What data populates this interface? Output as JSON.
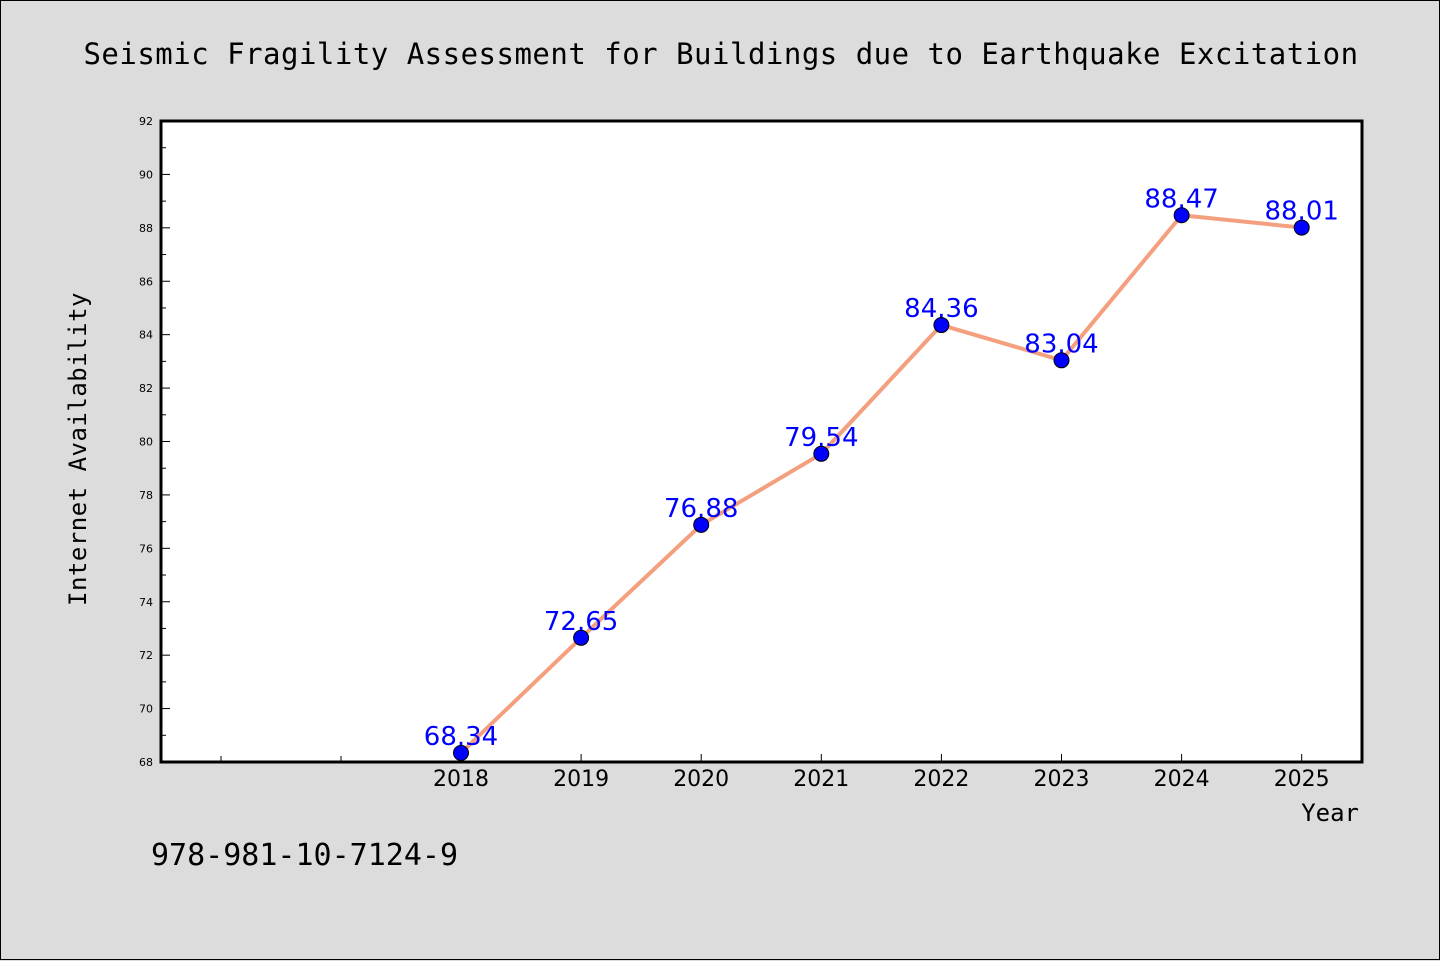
{
  "chart_data": {
    "type": "line",
    "title": "Seismic Fragility Assessment for Buildings due to Earthquake Excitation",
    "xlabel": "Year",
    "ylabel": "Internet Availability",
    "categories": [
      "2018",
      "2019",
      "2020",
      "2021",
      "2022",
      "2023",
      "2024",
      "2025"
    ],
    "values": [
      68.34,
      72.65,
      76.88,
      79.54,
      84.36,
      83.04,
      88.47,
      88.01
    ],
    "data_labels": [
      "68.34",
      "72.65",
      "76.88",
      "79.54",
      "84.36",
      "83.04",
      "88.47",
      "88.01"
    ],
    "ylim": [
      68,
      92
    ],
    "yticks": [
      "68",
      "70",
      "72",
      "74",
      "76",
      "78",
      "80",
      "82",
      "84",
      "86",
      "88",
      "90",
      "92"
    ],
    "grid": false,
    "legend": "none",
    "colors": {
      "line": "#f4a07e",
      "marker": "#0000ff",
      "label": "#0000ff",
      "background": "#dcdcdc",
      "plot_area": "#ffffff"
    }
  },
  "footer": {
    "isbn": "978-981-10-7124-9"
  }
}
